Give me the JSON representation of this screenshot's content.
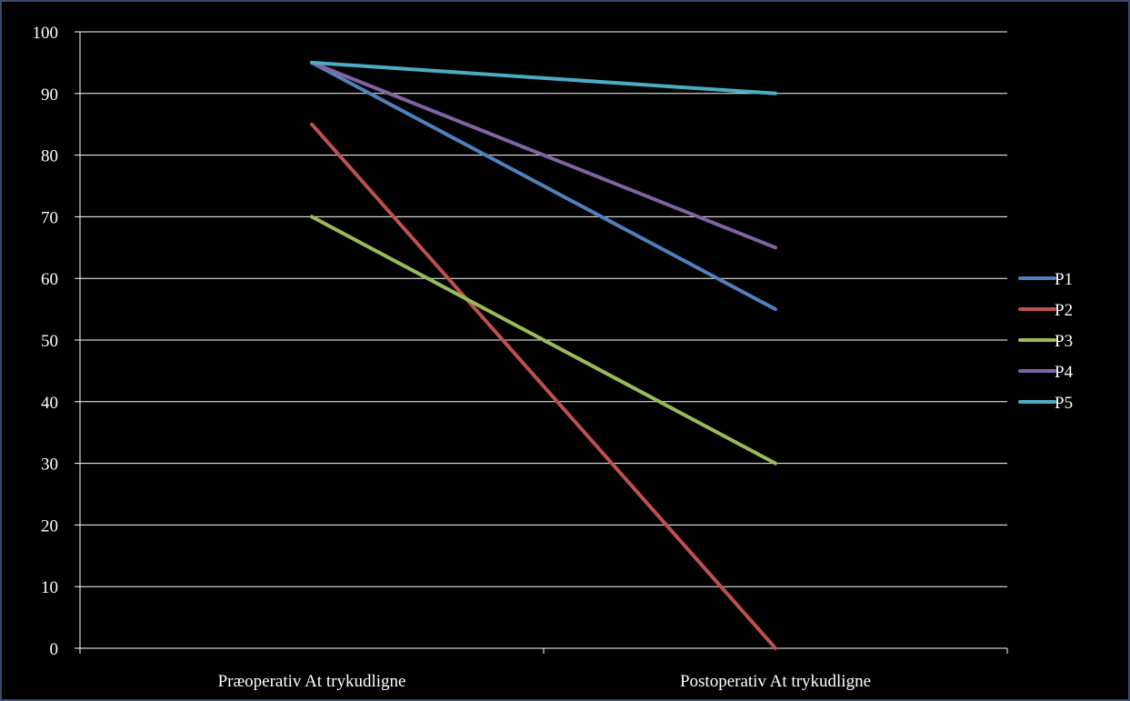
{
  "chart_data": {
    "type": "line",
    "title": "",
    "xlabel": "",
    "ylabel": "",
    "categories": [
      "Præoperativ At trykudligne",
      "Postoperativ At trykudligne"
    ],
    "ylim": [
      0,
      100
    ],
    "yticks": [
      0,
      10,
      20,
      30,
      40,
      50,
      60,
      70,
      80,
      90,
      100
    ],
    "grid": true,
    "legend_position": "right",
    "series": [
      {
        "name": "P1",
        "color": "#4f81bd",
        "values": [
          95,
          55
        ]
      },
      {
        "name": "P2",
        "color": "#c0504d",
        "values": [
          85,
          0
        ]
      },
      {
        "name": "P3",
        "color": "#9bbb59",
        "values": [
          70,
          30
        ]
      },
      {
        "name": "P4",
        "color": "#8064a2",
        "values": [
          95,
          65
        ]
      },
      {
        "name": "P5",
        "color": "#4bacc6",
        "values": [
          95,
          90
        ]
      }
    ]
  }
}
